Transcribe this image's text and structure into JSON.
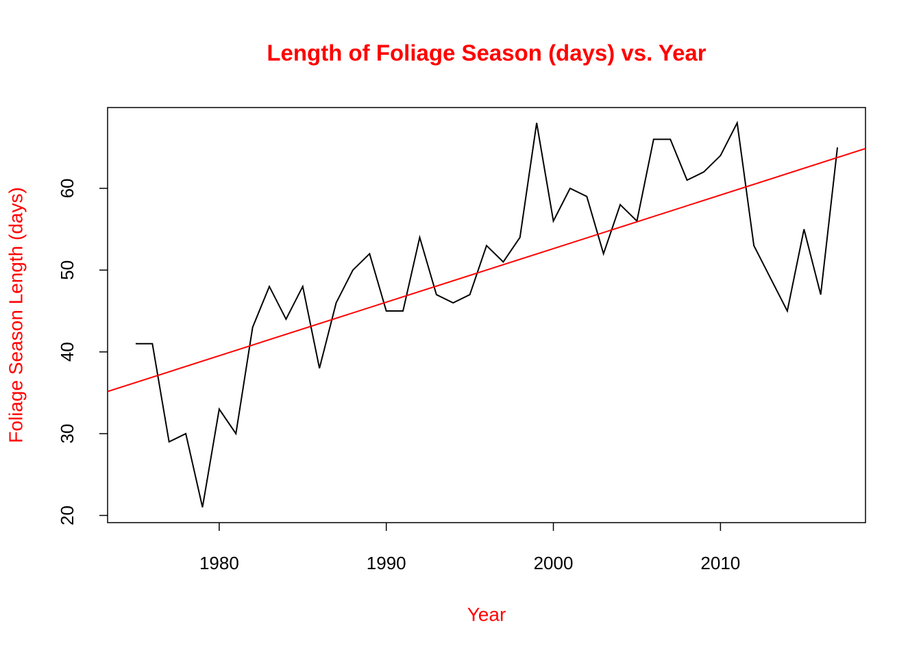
{
  "chart_data": {
    "type": "line",
    "title": "Length of Foliage Season (days) vs. Year",
    "x_label": "Year",
    "y_label": "Foliage Season Length (days)",
    "x": [
      1975,
      1976,
      1977,
      1978,
      1979,
      1980,
      1981,
      1982,
      1983,
      1984,
      1985,
      1986,
      1987,
      1988,
      1989,
      1990,
      1991,
      1992,
      1993,
      1994,
      1995,
      1996,
      1997,
      1998,
      1999,
      2000,
      2001,
      2002,
      2003,
      2004,
      2005,
      2006,
      2007,
      2008,
      2009,
      2010,
      2011,
      2012,
      2013,
      2014,
      2015,
      2016,
      2017
    ],
    "series": [
      {
        "color": "#000000",
        "values": [
          41,
          41,
          29,
          30,
          21,
          33,
          30,
          43,
          48,
          44,
          48,
          38,
          46,
          50,
          52,
          45,
          45,
          54,
          47,
          46,
          47,
          53,
          51,
          54,
          68,
          56,
          60,
          59,
          52,
          58,
          56,
          66,
          66,
          61,
          62,
          64,
          68,
          53,
          49,
          45,
          55,
          47,
          65
        ]
      }
    ],
    "trend": {
      "color": "#ff0000",
      "slope": 0.655,
      "intercept": -1257.37
    },
    "xlim": [
      1973.32,
      2018.68
    ],
    "ylim": [
      19.12,
      69.88
    ],
    "xticks": [
      1980,
      1990,
      2000,
      2010
    ],
    "yticks": [
      20,
      30,
      40,
      50,
      60
    ],
    "label_color": "#ff0000"
  }
}
